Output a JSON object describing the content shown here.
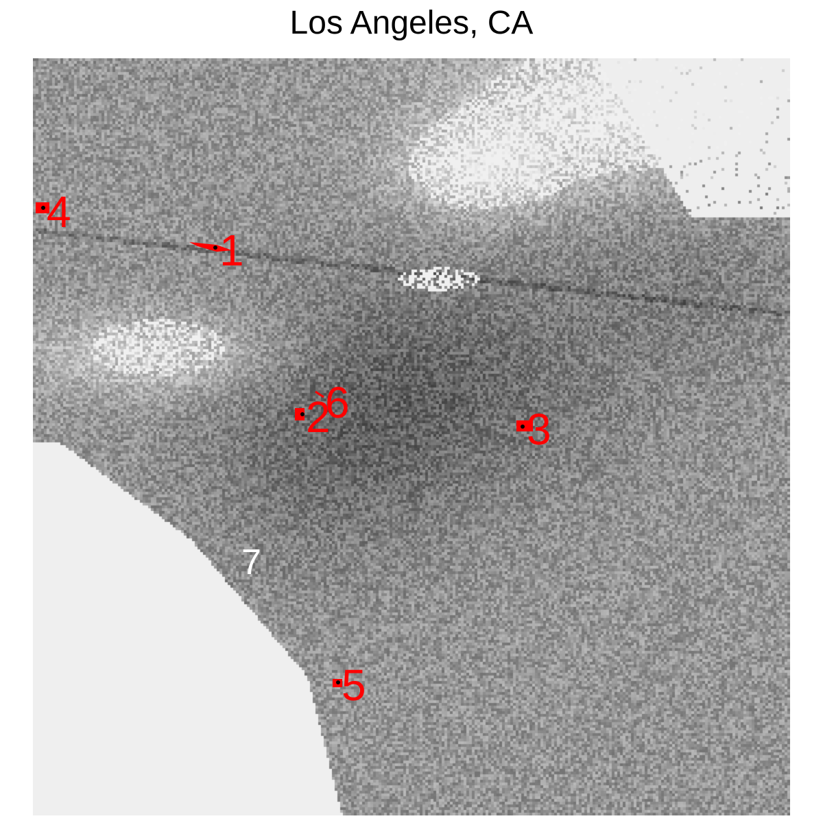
{
  "title": "Los Angeles, CA",
  "colors": {
    "water": "#efefef",
    "marker": "#ff0000",
    "point": "#000000",
    "hidden_label": "#ffffff"
  },
  "sites": [
    {
      "label": "1",
      "color": "#ff0000"
    },
    {
      "label": "2",
      "color": "#ff0000"
    },
    {
      "label": "3",
      "color": "#ff0000"
    },
    {
      "label": "4",
      "color": "#ff0000"
    },
    {
      "label": "5",
      "color": "#ff0000"
    },
    {
      "label": "6",
      "color": "#ff0000"
    },
    {
      "label": "7",
      "color": "#ffffff"
    }
  ]
}
